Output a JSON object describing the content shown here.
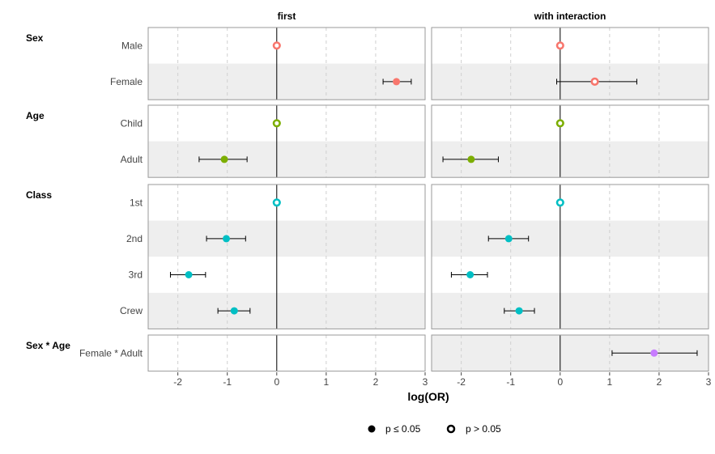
{
  "chart_data": {
    "type": "scatter",
    "subtype": "forest-plot",
    "panels": [
      {
        "title": "first"
      },
      {
        "title": "with interaction"
      }
    ],
    "xlabel": "log(OR)",
    "xlim": [
      -2.6,
      3
    ],
    "xticks": [
      -2,
      -1,
      0,
      1,
      2,
      3
    ],
    "xtick_labels": [
      "-2",
      "-1",
      "0",
      "1",
      "2",
      "3"
    ],
    "groups": [
      {
        "label": "Sex",
        "categories": [
          "Male",
          "Female"
        ],
        "color": "#F8766D"
      },
      {
        "label": "Age",
        "categories": [
          "Child",
          "Adult"
        ],
        "color": "#7CAE00"
      },
      {
        "label": "Class",
        "categories": [
          "1st",
          "2nd",
          "3rd",
          "Crew"
        ],
        "color": "#00BFC4"
      },
      {
        "label": "Sex * Age",
        "categories": [
          "Female * Adult"
        ],
        "color": "#C77CFF"
      }
    ],
    "series": [
      {
        "name": "first",
        "points": [
          {
            "group": "Sex",
            "category": "Male",
            "est": 0,
            "lo": null,
            "hi": null,
            "sig": false
          },
          {
            "group": "Sex",
            "category": "Female",
            "est": 2.42,
            "lo": 2.15,
            "hi": 2.72,
            "sig": true
          },
          {
            "group": "Age",
            "category": "Child",
            "est": 0,
            "lo": null,
            "hi": null,
            "sig": false
          },
          {
            "group": "Age",
            "category": "Adult",
            "est": -1.06,
            "lo": -1.57,
            "hi": -0.6,
            "sig": true
          },
          {
            "group": "Class",
            "category": "1st",
            "est": 0,
            "lo": null,
            "hi": null,
            "sig": false
          },
          {
            "group": "Class",
            "category": "2nd",
            "est": -1.02,
            "lo": -1.42,
            "hi": -0.63,
            "sig": true
          },
          {
            "group": "Class",
            "category": "3rd",
            "est": -1.78,
            "lo": -2.15,
            "hi": -1.44,
            "sig": true
          },
          {
            "group": "Class",
            "category": "Crew",
            "est": -0.86,
            "lo": -1.19,
            "hi": -0.54,
            "sig": true
          }
        ]
      },
      {
        "name": "with interaction",
        "points": [
          {
            "group": "Sex",
            "category": "Male",
            "est": 0,
            "lo": null,
            "hi": null,
            "sig": false
          },
          {
            "group": "Sex",
            "category": "Female",
            "est": 0.7,
            "lo": -0.07,
            "hi": 1.55,
            "sig": false
          },
          {
            "group": "Age",
            "category": "Child",
            "est": 0,
            "lo": null,
            "hi": null,
            "sig": false
          },
          {
            "group": "Age",
            "category": "Adult",
            "est": -1.8,
            "lo": -2.37,
            "hi": -1.25,
            "sig": true
          },
          {
            "group": "Class",
            "category": "1st",
            "est": 0,
            "lo": null,
            "hi": null,
            "sig": false
          },
          {
            "group": "Class",
            "category": "2nd",
            "est": -1.04,
            "lo": -1.45,
            "hi": -0.64,
            "sig": true
          },
          {
            "group": "Class",
            "category": "3rd",
            "est": -1.82,
            "lo": -2.2,
            "hi": -1.47,
            "sig": true
          },
          {
            "group": "Class",
            "category": "Crew",
            "est": -0.83,
            "lo": -1.13,
            "hi": -0.52,
            "sig": true
          },
          {
            "group": "Sex * Age",
            "category": "Female * Adult",
            "est": 1.9,
            "lo": 1.05,
            "hi": 2.77,
            "sig": true
          }
        ]
      }
    ],
    "grid": true,
    "legend": {
      "position": "bottom",
      "entries": [
        {
          "label": "p ≤ 0.05",
          "filled": true
        },
        {
          "label": "p > 0.05",
          "filled": false
        }
      ]
    }
  }
}
